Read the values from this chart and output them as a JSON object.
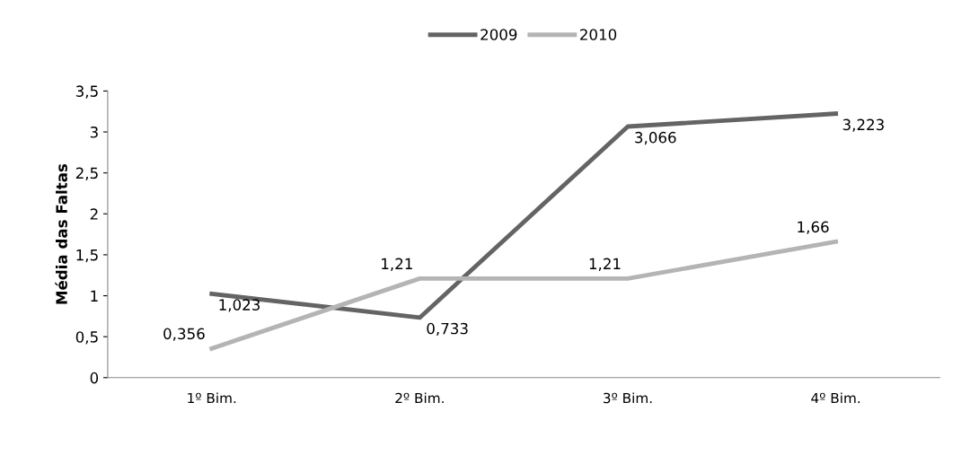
{
  "chart_data": {
    "type": "line",
    "ylabel": "Média das Faltas",
    "categories": [
      "1º Bim.",
      "2º Bim.",
      "3º Bim.",
      "4º Bim."
    ],
    "series": [
      {
        "name": "2009",
        "color": "#646464",
        "values": [
          1.023,
          0.733,
          3.066,
          3.223
        ],
        "value_labels": [
          "1,023",
          "0,733",
          "3,066",
          "3,223"
        ]
      },
      {
        "name": "2010",
        "color": "#b4b4b4",
        "values": [
          0.356,
          1.21,
          1.21,
          1.66
        ],
        "value_labels": [
          "0,356",
          "1,21",
          "1,21",
          "1,66"
        ]
      }
    ],
    "ylim": [
      0,
      3.5
    ],
    "yticks": [
      0,
      {
        "value": 0.5,
        "label": "0,5"
      },
      1,
      {
        "value": 1.5,
        "label": "1,5"
      },
      2,
      {
        "value": 2.5,
        "label": "2,5"
      },
      3,
      {
        "value": 3.5,
        "label": "3,5"
      }
    ],
    "grid": false,
    "legend": "top",
    "marker": "none",
    "line_style": "solid"
  }
}
